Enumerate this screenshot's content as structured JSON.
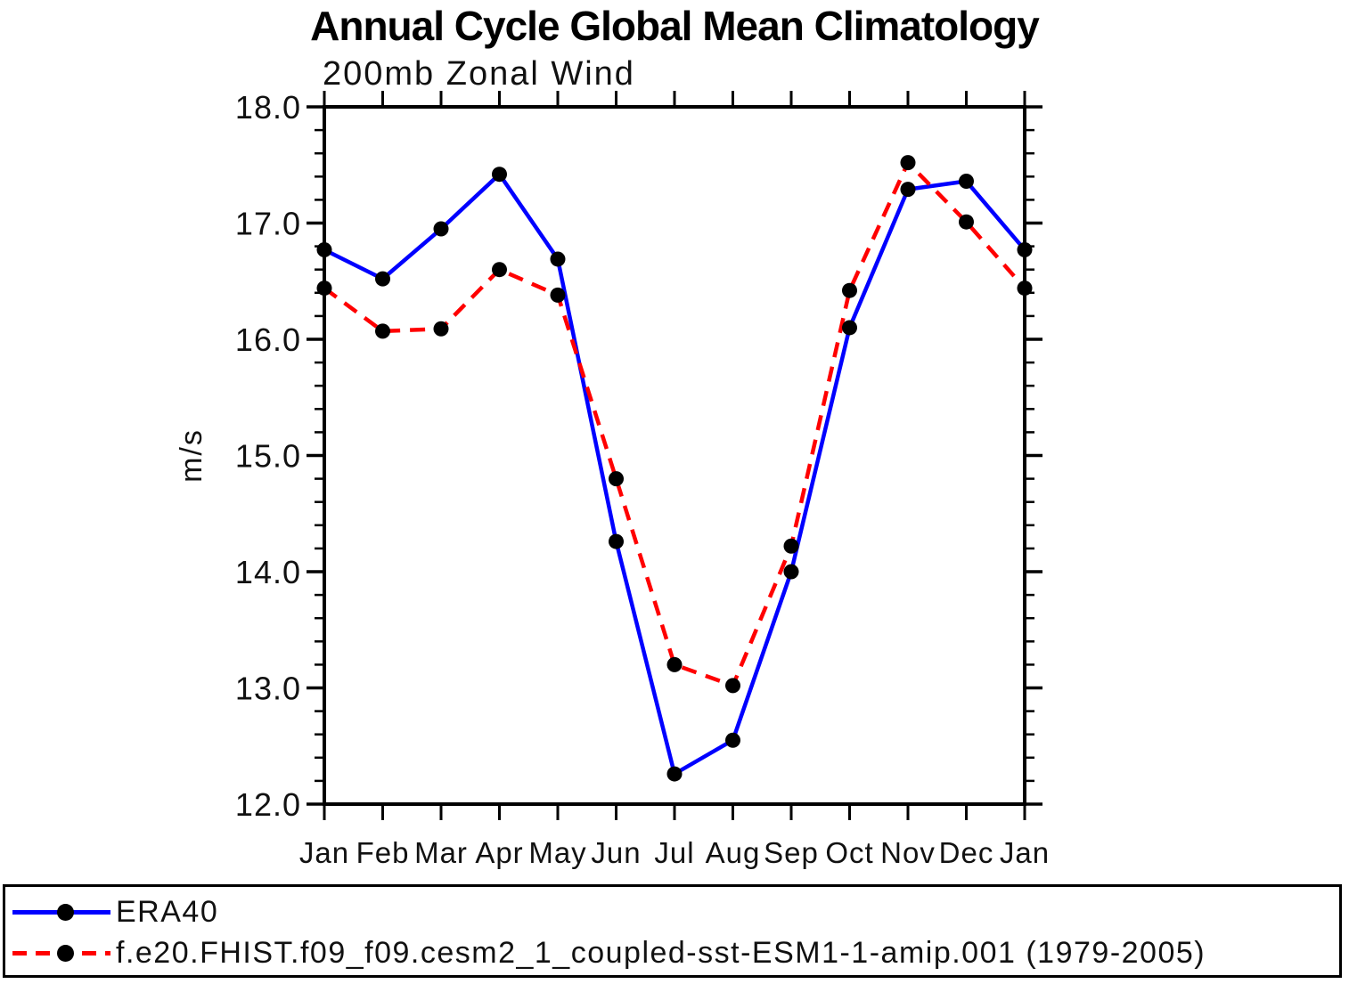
{
  "chart_data": {
    "type": "line",
    "title": "Annual Cycle Global Mean Climatology",
    "subtitle": "200mb Zonal Wind",
    "ylabel": "m/s",
    "categories": [
      "Jan",
      "Feb",
      "Mar",
      "Apr",
      "May",
      "Jun",
      "Jul",
      "Aug",
      "Sep",
      "Oct",
      "Nov",
      "Dec",
      "Jan"
    ],
    "ylim": [
      12.0,
      18.0
    ],
    "y_major_tick_step": 1.0,
    "y_minor_tick_step": 0.2,
    "y_tick_labels": [
      "12.0",
      "13.0",
      "14.0",
      "15.0",
      "16.0",
      "17.0",
      "18.0"
    ],
    "grid": false,
    "legend_position": "bottom-box",
    "axis_color": "#000000",
    "series": [
      {
        "name": "ERA40",
        "color": "#0000ff",
        "line_style": "solid",
        "marker": "filled-circle",
        "marker_color": "#000000",
        "values": [
          16.77,
          16.52,
          16.95,
          17.42,
          16.69,
          14.26,
          12.26,
          12.55,
          14.0,
          16.1,
          17.29,
          17.36,
          16.77
        ]
      },
      {
        "name": "f.e20.FHIST.f09_f09.cesm2_1_coupled-sst-ESM1-1-amip.001 (1979-2005)",
        "color": "#ff0000",
        "line_style": "dashed",
        "marker": "filled-circle",
        "marker_color": "#000000",
        "values": [
          16.44,
          16.07,
          16.09,
          16.6,
          16.38,
          14.8,
          13.2,
          13.02,
          14.22,
          16.42,
          17.52,
          17.01,
          16.44
        ]
      }
    ]
  }
}
